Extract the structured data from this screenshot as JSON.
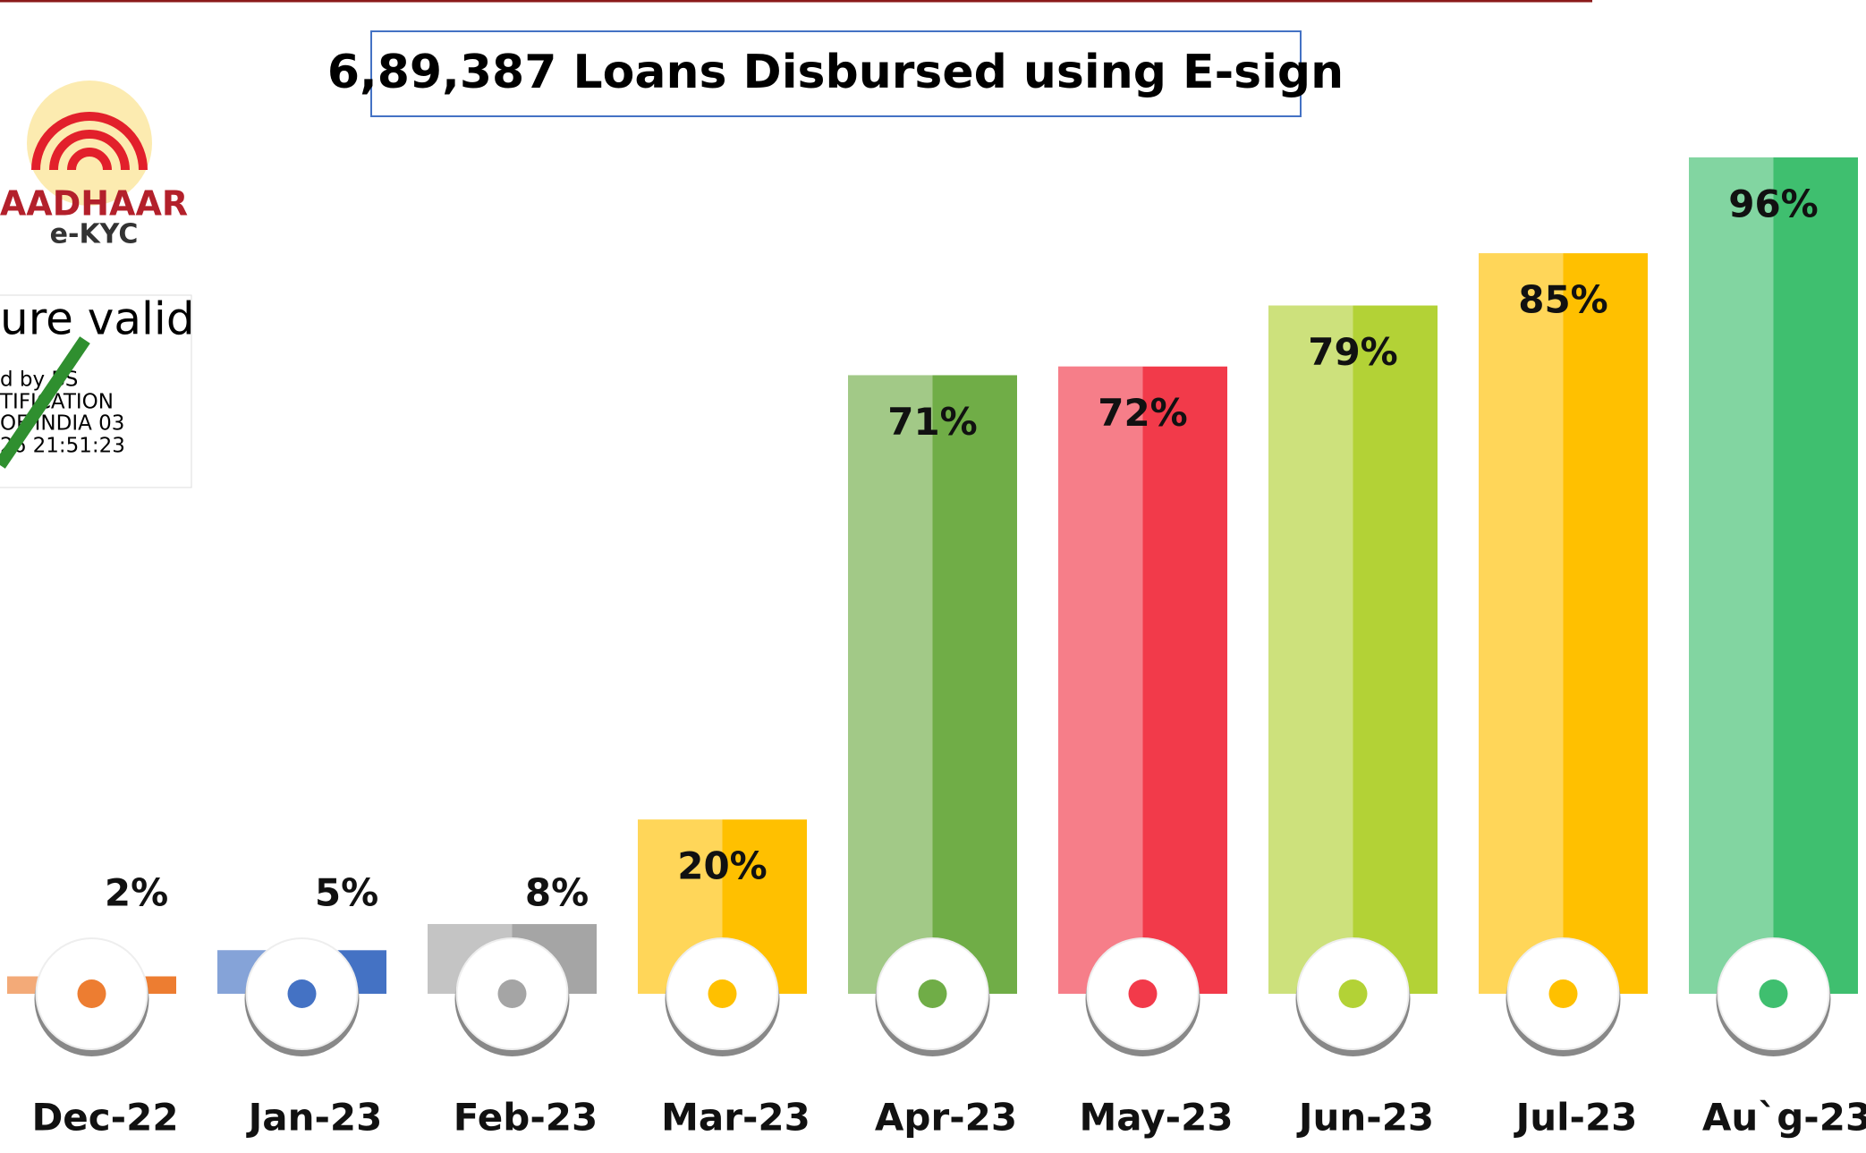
{
  "chart_data": {
    "type": "bar",
    "title": "6,89,387 Loans Disbursed using E-sign",
    "categories": [
      "Dec-22",
      "Jan-23",
      "Feb-23",
      "Mar-23",
      "Apr-23",
      "May-23",
      "Jun-23",
      "Jul-23",
      "Au`g-23"
    ],
    "values": [
      2,
      5,
      8,
      20,
      71,
      72,
      79,
      85,
      96
    ],
    "value_labels": [
      "2%",
      "5%",
      "8%",
      "20%",
      "71%",
      "72%",
      "79%",
      "85%",
      "96%"
    ],
    "colors": [
      "#ed7d31",
      "#4472c4",
      "#a5a5a5",
      "#ffc000",
      "#70ad47",
      "#f23a4a",
      "#b3d236",
      "#ffc000",
      "#3fbf6f"
    ],
    "ylim": [
      0,
      100
    ],
    "annotations": [
      "AADHAAR",
      "e-KYC",
      "ure valid",
      "d by BS",
      "TIFICATION",
      "OF INDIA 03",
      "26 21:51:23"
    ]
  }
}
